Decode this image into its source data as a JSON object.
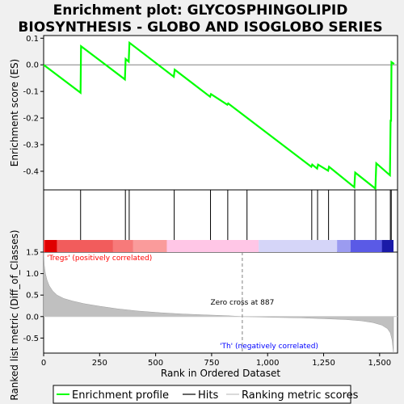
{
  "title_line1": "Enrichment plot: GLYCOSPHINGOLIPID",
  "title_line2": "BIOSYNTHESIS - GLOBO AND ISOGLOBO SERIES",
  "chart_data": {
    "type": "line",
    "es_ylabel": "Enrichment score (ES)",
    "metric_ylabel": "Ranked list metric (Diff_of_Classes)",
    "xlabel": "Rank in Ordered Dataset",
    "xlim": [
      0,
      1580
    ],
    "es_ylim": [
      -0.47,
      0.11
    ],
    "metric_ylim": [
      -0.85,
      1.5
    ],
    "x_ticks": [
      0,
      250,
      500,
      750,
      1000,
      1250,
      1500
    ],
    "x_tick_labels": [
      "0",
      "250",
      "500",
      "750",
      "1,000",
      "1,250",
      "1,500"
    ],
    "es_ticks": [
      0.1,
      0.0,
      -0.1,
      -0.2,
      -0.3,
      -0.4
    ],
    "es_tick_labels": [
      "0.1",
      "0.0",
      "-0.1",
      "-0.2",
      "-0.3",
      "-0.4"
    ],
    "metric_ticks": [
      1.5,
      1.0,
      0.5,
      0.0,
      -0.5
    ],
    "metric_tick_labels": [
      "1.5",
      "1.0",
      "0.5",
      "0.0",
      "-0.5"
    ],
    "hits": [
      165,
      365,
      382,
      583,
      745,
      822,
      908,
      1197,
      1223,
      1272,
      1389,
      1483,
      1548,
      1552
    ],
    "es_curve": [
      [
        0,
        0.0
      ],
      [
        165,
        -0.105
      ],
      [
        167,
        0.07
      ],
      [
        363,
        -0.055
      ],
      [
        366,
        0.022
      ],
      [
        380,
        0.012
      ],
      [
        383,
        0.083
      ],
      [
        581,
        -0.045
      ],
      [
        585,
        -0.018
      ],
      [
        743,
        -0.12
      ],
      [
        747,
        -0.11
      ],
      [
        820,
        -0.15
      ],
      [
        824,
        -0.145
      ],
      [
        1195,
        -0.383
      ],
      [
        1199,
        -0.375
      ],
      [
        1221,
        -0.39
      ],
      [
        1225,
        -0.375
      ],
      [
        1270,
        -0.398
      ],
      [
        1274,
        -0.383
      ],
      [
        1387,
        -0.46
      ],
      [
        1391,
        -0.405
      ],
      [
        1481,
        -0.465
      ],
      [
        1485,
        -0.37
      ],
      [
        1546,
        -0.415
      ],
      [
        1549,
        -0.21
      ],
      [
        1551,
        -0.21
      ],
      [
        1553,
        0.01
      ],
      [
        1565,
        0.003
      ]
    ],
    "metric_curve": [
      [
        0,
        1.5
      ],
      [
        3,
        1.2
      ],
      [
        8,
        1.0
      ],
      [
        15,
        0.85
      ],
      [
        25,
        0.72
      ],
      [
        40,
        0.6
      ],
      [
        60,
        0.5
      ],
      [
        90,
        0.42
      ],
      [
        130,
        0.36
      ],
      [
        180,
        0.3
      ],
      [
        250,
        0.24
      ],
      [
        330,
        0.18
      ],
      [
        420,
        0.13
      ],
      [
        520,
        0.09
      ],
      [
        620,
        0.06
      ],
      [
        720,
        0.04
      ],
      [
        820,
        0.02
      ],
      [
        887,
        0.0
      ],
      [
        950,
        -0.01
      ],
      [
        1050,
        -0.02
      ],
      [
        1150,
        -0.03
      ],
      [
        1250,
        -0.05
      ],
      [
        1350,
        -0.07
      ],
      [
        1420,
        -0.1
      ],
      [
        1470,
        -0.14
      ],
      [
        1510,
        -0.2
      ],
      [
        1535,
        -0.28
      ],
      [
        1548,
        -0.38
      ],
      [
        1556,
        -0.55
      ],
      [
        1562,
        -0.85
      ]
    ],
    "zero_cross": 887,
    "zero_cross_label": "Zero cross at 887",
    "pos_label": "'Tregs' (positively correlated)",
    "neg_label": "'Th' (negatively correlated)",
    "legend": [
      "Enrichment profile",
      "Hits",
      "Ranking metric scores"
    ],
    "colors": {
      "es_line": "#00ff00",
      "pos_label": "#ff0000",
      "neg_label": "#0000ff",
      "metric_fill": "#c0c0c0",
      "hit": "#000000"
    }
  }
}
